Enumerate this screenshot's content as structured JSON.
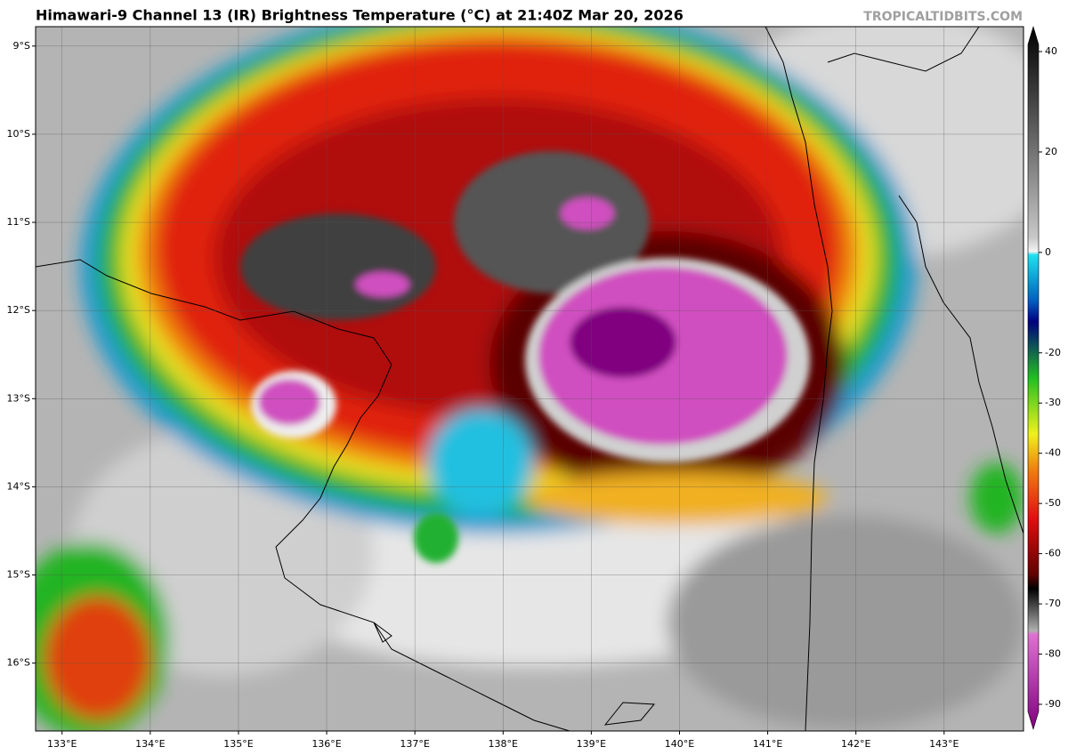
{
  "header": {
    "title": "Himawari-9 Channel 13 (IR) Brightness Temperature (°C) at 21:40Z Mar 20, 2026",
    "credit": "TROPICALTIDBITS.COM"
  },
  "map": {
    "xlim": [
      132.7,
      143.9
    ],
    "ylim": [
      -16.77,
      -8.78
    ],
    "grid": true,
    "lat_ticks": [
      {
        "value": -9,
        "label": "9°S"
      },
      {
        "value": -10,
        "label": "10°S"
      },
      {
        "value": -11,
        "label": "11°S"
      },
      {
        "value": -12,
        "label": "12°S"
      },
      {
        "value": -13,
        "label": "13°S"
      },
      {
        "value": -14,
        "label": "14°S"
      },
      {
        "value": -15,
        "label": "15°S"
      },
      {
        "value": -16,
        "label": "16°S"
      }
    ],
    "lon_ticks": [
      {
        "value": 133,
        "label": "133°E"
      },
      {
        "value": 134,
        "label": "134°E"
      },
      {
        "value": 135,
        "label": "135°E"
      },
      {
        "value": 136,
        "label": "136°E"
      },
      {
        "value": 137,
        "label": "137°E"
      },
      {
        "value": 138,
        "label": "138°E"
      },
      {
        "value": 139,
        "label": "139°E"
      },
      {
        "value": 140,
        "label": "140°E"
      },
      {
        "value": 141,
        "label": "141°E"
      },
      {
        "value": 142,
        "label": "142°E"
      },
      {
        "value": 143,
        "label": "143°E"
      }
    ]
  },
  "colorbar": {
    "lim": [
      -90,
      40
    ],
    "ticks": [
      40,
      20,
      0,
      -20,
      -30,
      -40,
      -50,
      -60,
      -70,
      -80,
      -90
    ]
  }
}
